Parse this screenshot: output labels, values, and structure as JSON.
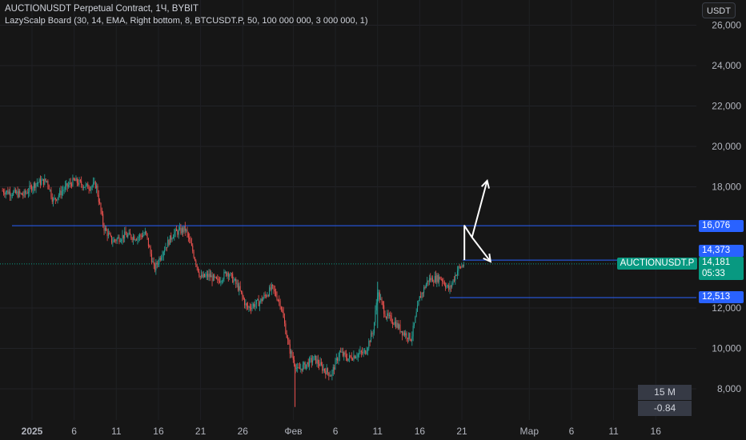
{
  "header": {
    "title": "AUCTIONUSDT Perpetual Contract, 1Ч, BYBIT",
    "indicator": "LazyScalp Board (30, 14, EMA, Right bottom, 8, BTCUSDT.P, 50, 100 000 000, 3 000 000, 1)",
    "currency_button": "USDT"
  },
  "colors": {
    "up": "#26a69a",
    "down": "#ef5350",
    "level_line": "#2962ff",
    "price_line": "#089981",
    "arrow": "#ffffff"
  },
  "price_tags": {
    "level_16076": "16,076",
    "level_14373": "14,373",
    "level_12513": "12,513",
    "symbol": "AUCTIONUSDT.P",
    "last_price": "14,181",
    "countdown": "05:33"
  },
  "stats": {
    "volume": "15 M",
    "change": "-0.84"
  },
  "chart_data": {
    "type": "candlestick",
    "y_axis_ticks": [
      "26,000",
      "24,000",
      "22,000",
      "20,000",
      "18,000",
      "12,000",
      "10,000",
      "8,000"
    ],
    "y_tick_values": [
      26000,
      24000,
      22000,
      20000,
      18000,
      12000,
      10000,
      8000
    ],
    "x_axis_ticks": [
      "2025",
      "6",
      "11",
      "16",
      "21",
      "26",
      "Фев",
      "6",
      "11",
      "16",
      "21",
      "Мар",
      "6",
      "11",
      "16"
    ],
    "x_tick_days": [
      1,
      6,
      11,
      16,
      21,
      26,
      32,
      37,
      42,
      47,
      52,
      60,
      65,
      70,
      75
    ],
    "ylim": [
      7000,
      26600
    ],
    "horizontal_levels": [
      16076,
      14373,
      12513
    ],
    "last_price": 14181,
    "price_path": [
      {
        "day": -2.5,
        "price": 17800
      },
      {
        "day": 0,
        "price": 17600
      },
      {
        "day": 1.5,
        "price": 18200
      },
      {
        "day": 2.8,
        "price": 18300
      },
      {
        "day": 3.5,
        "price": 17300
      },
      {
        "day": 4.8,
        "price": 17900
      },
      {
        "day": 6,
        "price": 18300
      },
      {
        "day": 7.5,
        "price": 18000
      },
      {
        "day": 8.6,
        "price": 18100
      },
      {
        "day": 9.5,
        "price": 16000
      },
      {
        "day": 10.5,
        "price": 15300
      },
      {
        "day": 12,
        "price": 15600
      },
      {
        "day": 13.5,
        "price": 15500
      },
      {
        "day": 14.5,
        "price": 15700
      },
      {
        "day": 15.5,
        "price": 13900
      },
      {
        "day": 16.5,
        "price": 14800
      },
      {
        "day": 17.8,
        "price": 15700
      },
      {
        "day": 19.2,
        "price": 15900
      },
      {
        "day": 20,
        "price": 14900
      },
      {
        "day": 21,
        "price": 13500
      },
      {
        "day": 22,
        "price": 13600
      },
      {
        "day": 23,
        "price": 13300
      },
      {
        "day": 24.2,
        "price": 13800
      },
      {
        "day": 25.5,
        "price": 13000
      },
      {
        "day": 26.5,
        "price": 12000
      },
      {
        "day": 28,
        "price": 12300
      },
      {
        "day": 29.5,
        "price": 13000
      },
      {
        "day": 30.5,
        "price": 12200
      },
      {
        "day": 31.5,
        "price": 10000
      },
      {
        "day": 32.5,
        "price": 8900
      },
      {
        "day": 33.5,
        "price": 9200
      },
      {
        "day": 34.5,
        "price": 9500
      },
      {
        "day": 35.5,
        "price": 9000
      },
      {
        "day": 36.5,
        "price": 8700
      },
      {
        "day": 37.5,
        "price": 9800
      },
      {
        "day": 38.5,
        "price": 9500
      },
      {
        "day": 39.5,
        "price": 9700
      },
      {
        "day": 40.5,
        "price": 9800
      },
      {
        "day": 41.5,
        "price": 10900
      },
      {
        "day": 42,
        "price": 12800
      },
      {
        "day": 43,
        "price": 11600
      },
      {
        "day": 44,
        "price": 11300
      },
      {
        "day": 45,
        "price": 10800
      },
      {
        "day": 46,
        "price": 10500
      },
      {
        "day": 47,
        "price": 12500
      },
      {
        "day": 48,
        "price": 13400
      },
      {
        "day": 49.5,
        "price": 13500
      },
      {
        "day": 50.5,
        "price": 12900
      },
      {
        "day": 51.5,
        "price": 13900
      },
      {
        "day": 52.3,
        "price": 14200
      }
    ],
    "projection_arrows": [
      {
        "points": [
          {
            "day": 52.3,
            "price": 14373
          },
          {
            "day": 52.3,
            "price": 16076
          },
          {
            "day": 53.2,
            "price": 15500
          },
          {
            "day": 55,
            "price": 18300
          }
        ]
      },
      {
        "points": [
          {
            "day": 53.2,
            "price": 15500
          },
          {
            "day": 55.4,
            "price": 14300
          }
        ]
      }
    ]
  }
}
